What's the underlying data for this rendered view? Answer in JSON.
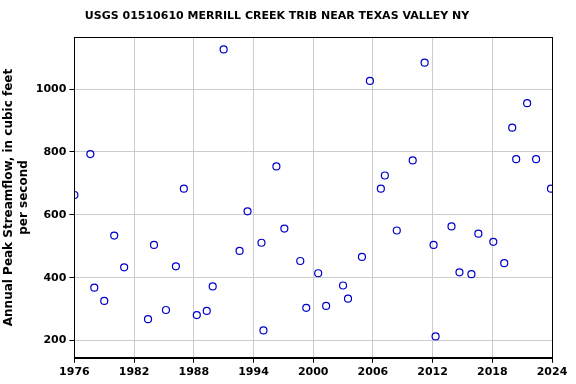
{
  "chart_data": {
    "type": "scatter",
    "title": "USGS 01510610 MERRILL CREEK TRIB NEAR TEXAS VALLEY NY",
    "ylabel": [
      "Annual Peak Streamflow, in cubic feet",
      "per second"
    ],
    "x": [
      1976.0,
      1977.6,
      1978.0,
      1979.0,
      1980.0,
      1981.0,
      1983.4,
      1984.0,
      1985.2,
      1986.2,
      1987.0,
      1988.3,
      1989.3,
      1989.9,
      1991.0,
      1992.6,
      1993.4,
      1994.8,
      1995.0,
      1996.3,
      1997.1,
      1998.7,
      1999.3,
      2000.5,
      2001.3,
      2003.0,
      2003.5,
      2004.9,
      2005.7,
      2006.8,
      2007.2,
      2008.4,
      2010.0,
      2011.2,
      2012.1,
      2012.3,
      2013.9,
      2014.7,
      2015.9,
      2016.6,
      2018.1,
      2019.2,
      2020.0,
      2020.4,
      2021.5,
      2022.4,
      2023.9
    ],
    "values": [
      663,
      793,
      368,
      326,
      534,
      433,
      268,
      504,
      297,
      436,
      683,
      281,
      294,
      372,
      1126,
      485,
      611,
      511,
      232,
      754,
      556,
      453,
      304,
      414,
      310,
      375,
      333,
      466,
      1026,
      683,
      725,
      550,
      773,
      1084,
      504,
      213,
      563,
      417,
      411,
      540,
      514,
      446,
      877,
      777,
      955,
      777,
      683
    ],
    "color": "#0000cc",
    "marker": "open_circle",
    "xlim": [
      1976,
      2024
    ],
    "xticks": [
      1976,
      1982,
      1988,
      1994,
      2000,
      2006,
      2012,
      2018,
      2024
    ],
    "ylim": [
      145,
      1165
    ],
    "yticks": [
      200,
      400,
      600,
      800,
      1000
    ],
    "grid": true
  }
}
